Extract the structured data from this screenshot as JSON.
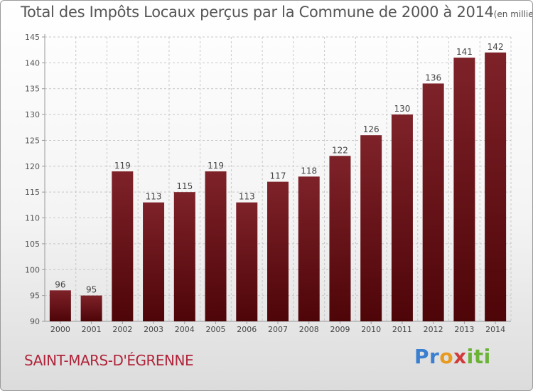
{
  "title": "Total des Impôts Locaux perçus par la Commune de 2000 à 2014",
  "unit": "(en milliers d'€)",
  "commune": "SAINT-MARS-D'ÉGRENNE",
  "brand": "Proxiti",
  "colors": {
    "bar": "#7a1a20",
    "bar_dark": "#4e0508",
    "text": "#555555",
    "commune": "#b0243a"
  },
  "chart_data": {
    "type": "bar",
    "title": "Total des Impôts Locaux perçus par la Commune de 2000 à 2014",
    "ylabel": "(en milliers d'€)",
    "xlabel": "",
    "categories": [
      "2000",
      "2001",
      "2002",
      "2003",
      "2004",
      "2005",
      "2006",
      "2007",
      "2008",
      "2009",
      "2010",
      "2011",
      "2012",
      "2013",
      "2014"
    ],
    "values": [
      96,
      95,
      119,
      113,
      115,
      119,
      113,
      117,
      118,
      122,
      126,
      130,
      136,
      141,
      142
    ],
    "ylim": [
      90,
      145
    ],
    "yticks": [
      90,
      95,
      100,
      105,
      110,
      115,
      120,
      125,
      130,
      135,
      140,
      145
    ],
    "grid": true,
    "data_labels": true
  }
}
